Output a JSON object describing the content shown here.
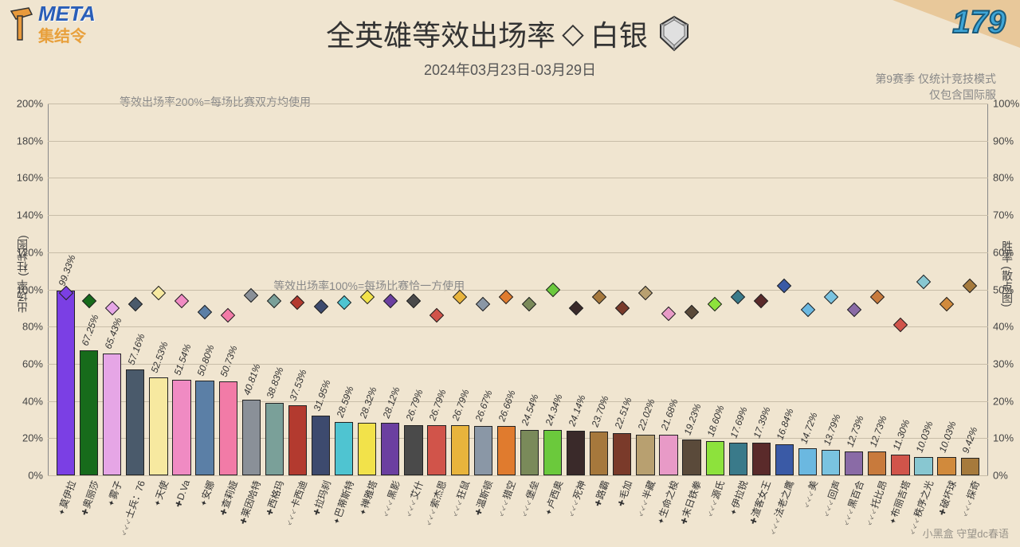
{
  "meta": {
    "title_prefix": "全英雄等效出场率",
    "title_rank": "白银",
    "date_range": "2024年03月23日-03月29日",
    "season_line1": "第9赛季 仅统计竞技模式",
    "season_line2": "仅包含国际服",
    "logo_main": "META",
    "logo_sub": "集结令",
    "corner_number": "179",
    "formula_200": "等效出场率200%=每场比赛双方均使用",
    "formula_100": "等效出场率100%=每场比赛恰一方使用",
    "watermark": "小黑盒 守望dc春语"
  },
  "chart": {
    "type": "bar+scatter",
    "background_color": "#f0e5d0",
    "grid_color": "#c8bda8",
    "bar_border_color": "#222222",
    "label_fontsize": 12,
    "axis_left": {
      "label": "出场率 (柱状图)",
      "min": 0,
      "max": 200,
      "step": 20
    },
    "axis_right": {
      "label": "胜率 (散点图)",
      "min": 0,
      "max": 100,
      "step": 10
    },
    "heroes": [
      {
        "name": "莫伊拉",
        "role": "support",
        "pick": 99.33,
        "win": 49,
        "color": "#7b3fe4"
      },
      {
        "name": "奥丽莎",
        "role": "tank",
        "pick": 67.25,
        "win": 47,
        "color": "#176b1b"
      },
      {
        "name": "雾子",
        "role": "support",
        "pick": 65.43,
        "win": 45,
        "color": "#e6a6e6"
      },
      {
        "name": "士兵：76",
        "role": "dps",
        "pick": 57.16,
        "win": 46,
        "color": "#4a5a6b"
      },
      {
        "name": "天使",
        "role": "support",
        "pick": 52.53,
        "win": 49,
        "color": "#f7e9a0"
      },
      {
        "name": "D.Va",
        "role": "tank",
        "pick": 51.54,
        "win": 47,
        "color": "#f08bc3"
      },
      {
        "name": "安娜",
        "role": "support",
        "pick": 50.8,
        "win": 44,
        "color": "#5b7fa6"
      },
      {
        "name": "查莉娅",
        "role": "tank",
        "pick": 50.73,
        "win": 43,
        "color": "#f27ba7"
      },
      {
        "name": "莱因哈特",
        "role": "tank",
        "pick": 40.81,
        "win": 48.5,
        "color": "#8a9098"
      },
      {
        "name": "西格玛",
        "role": "tank",
        "pick": 38.83,
        "win": 47,
        "color": "#7aa099"
      },
      {
        "name": "卡西迪",
        "role": "dps",
        "pick": 37.53,
        "win": 46.5,
        "color": "#b33a2f"
      },
      {
        "name": "拉玛刹",
        "role": "tank",
        "pick": 31.95,
        "win": 45.5,
        "color": "#3d4a6e"
      },
      {
        "name": "巴蒂斯特",
        "role": "support",
        "pick": 28.59,
        "win": 46.5,
        "color": "#4fc4d1"
      },
      {
        "name": "禅雅塔",
        "role": "support",
        "pick": 28.32,
        "win": 48,
        "color": "#f2e24a"
      },
      {
        "name": "黑影",
        "role": "dps",
        "pick": 28.12,
        "win": 47,
        "color": "#6b3fa0"
      },
      {
        "name": "艾什",
        "role": "dps",
        "pick": 26.79,
        "win": 47,
        "color": "#4a4a4a"
      },
      {
        "name": "索杰恩",
        "role": "dps",
        "pick": 26.79,
        "win": 43,
        "color": "#d1544a"
      },
      {
        "name": "狂鼠",
        "role": "dps",
        "pick": 26.79,
        "win": 48,
        "color": "#e8b43c"
      },
      {
        "name": "温斯顿",
        "role": "tank",
        "pick": 26.67,
        "win": 46,
        "color": "#8a97a6"
      },
      {
        "name": "猎空",
        "role": "dps",
        "pick": 26.66,
        "win": 48,
        "color": "#e07b2e"
      },
      {
        "name": "堡垒",
        "role": "dps",
        "pick": 24.54,
        "win": 46,
        "color": "#7a8a5a"
      },
      {
        "name": "卢西奥",
        "role": "support",
        "pick": 24.34,
        "win": 50,
        "color": "#6bc93c"
      },
      {
        "name": "死神",
        "role": "dps",
        "pick": 24.14,
        "win": 45,
        "color": "#3a2a2a"
      },
      {
        "name": "路霸",
        "role": "tank",
        "pick": 23.7,
        "win": 48,
        "color": "#a6783c"
      },
      {
        "name": "毛加",
        "role": "tank",
        "pick": 22.51,
        "win": 45,
        "color": "#7a3a2a"
      },
      {
        "name": "半藏",
        "role": "dps",
        "pick": 22.02,
        "win": 49,
        "color": "#b8a070"
      },
      {
        "name": "生命之梭",
        "role": "support",
        "pick": 21.68,
        "win": 43.5,
        "color": "#e89ac7"
      },
      {
        "name": "末日铁拳",
        "role": "tank",
        "pick": 19.23,
        "win": 44,
        "color": "#5a4a3a"
      },
      {
        "name": "源氏",
        "role": "dps",
        "pick": 18.6,
        "win": 46,
        "color": "#8de23c"
      },
      {
        "name": "伊拉锐",
        "role": "support",
        "pick": 17.69,
        "win": 48,
        "color": "#3a7a8a"
      },
      {
        "name": "渣客女王",
        "role": "tank",
        "pick": 17.39,
        "win": 47,
        "color": "#5a2a2a"
      },
      {
        "name": "法老之鹰",
        "role": "dps",
        "pick": 16.84,
        "win": 51,
        "color": "#3a5aa6"
      },
      {
        "name": "美",
        "role": "dps",
        "pick": 14.72,
        "win": 44.5,
        "color": "#6bb8e0"
      },
      {
        "name": "回声",
        "role": "dps",
        "pick": 13.79,
        "win": 48,
        "color": "#7ac3e0"
      },
      {
        "name": "黑百合",
        "role": "dps",
        "pick": 12.73,
        "win": 44.5,
        "color": "#8a6ba6"
      },
      {
        "name": "托比昂",
        "role": "dps",
        "pick": 12.73,
        "win": 48,
        "color": "#c87a3c"
      },
      {
        "name": "布丽吉塔",
        "role": "support",
        "pick": 11.3,
        "win": 40.5,
        "color": "#d1544a"
      },
      {
        "name": "秩序之光",
        "role": "dps",
        "pick": 10.03,
        "win": 52,
        "color": "#88c7d1"
      },
      {
        "name": "破坏球",
        "role": "tank",
        "pick": 10.03,
        "win": 46,
        "color": "#d18a3c"
      },
      {
        "name": "探奇",
        "role": "dps",
        "pick": 9.42,
        "win": 51,
        "color": "#a67a3c"
      }
    ],
    "role_glyphs": {
      "tank": "✚",
      "dps": "⸔⸔⸔",
      "support": "✦"
    }
  }
}
